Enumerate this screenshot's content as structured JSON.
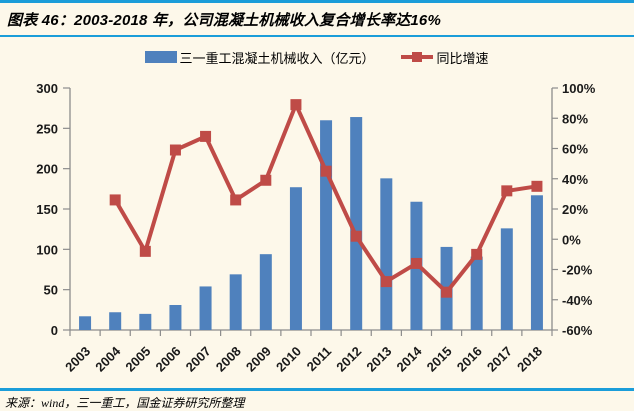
{
  "figure": {
    "title": "图表 46：2003-2018 年，公司混凝土机械收入复合增长率达16%",
    "source": "来源：wind，三一重工，国金证券研究所整理"
  },
  "legend": {
    "bar": {
      "label": "三一重工混凝土机械收入（亿元）"
    },
    "line": {
      "label": "同比增速"
    }
  },
  "colors": {
    "background": "#FDF8EA",
    "rule_blue": "#1B9DD9",
    "bar_blue": "#4F81BD",
    "line_red": "#BF4B47",
    "axis_gray": "#8C8C8C",
    "text_black": "#1A1A1A"
  },
  "chart_data": {
    "type": "bar+line",
    "title": "图表 46：2003-2018 年，公司混凝土机械收入复合增长率达16%",
    "categories": [
      "2003",
      "2004",
      "2005",
      "2006",
      "2007",
      "2008",
      "2009",
      "2010",
      "2011",
      "2012",
      "2013",
      "2014",
      "2015",
      "2016",
      "2017",
      "2018"
    ],
    "series": [
      {
        "name": "三一重工混凝土机械收入（亿元）",
        "type": "bar",
        "axis": "left",
        "unit": "亿元",
        "color": "#4F81BD",
        "values": [
          17,
          22,
          20,
          31,
          54,
          69,
          94,
          177,
          260,
          264,
          188,
          159,
          103,
          91,
          126,
          167
        ]
      },
      {
        "name": "同比增速",
        "type": "line",
        "axis": "right",
        "unit": "%",
        "marker": "square",
        "color": "#BF4B47",
        "values": [
          null,
          26,
          -8,
          59,
          68,
          26,
          39,
          89,
          45,
          2,
          -28,
          -16,
          -35,
          -10,
          32,
          35
        ]
      }
    ],
    "left_axis": {
      "min": 0,
      "max": 300,
      "step": 50,
      "tick_labels": [
        "0",
        "50",
        "100",
        "150",
        "200",
        "250",
        "300"
      ]
    },
    "right_axis": {
      "min": -60,
      "max": 100,
      "step": 20,
      "format": "percent",
      "tick_labels": [
        "-60%",
        "-40%",
        "-20%",
        "0%",
        "20%",
        "40%",
        "60%",
        "80%",
        "100%"
      ]
    },
    "grid": false,
    "legend_position": "top"
  }
}
